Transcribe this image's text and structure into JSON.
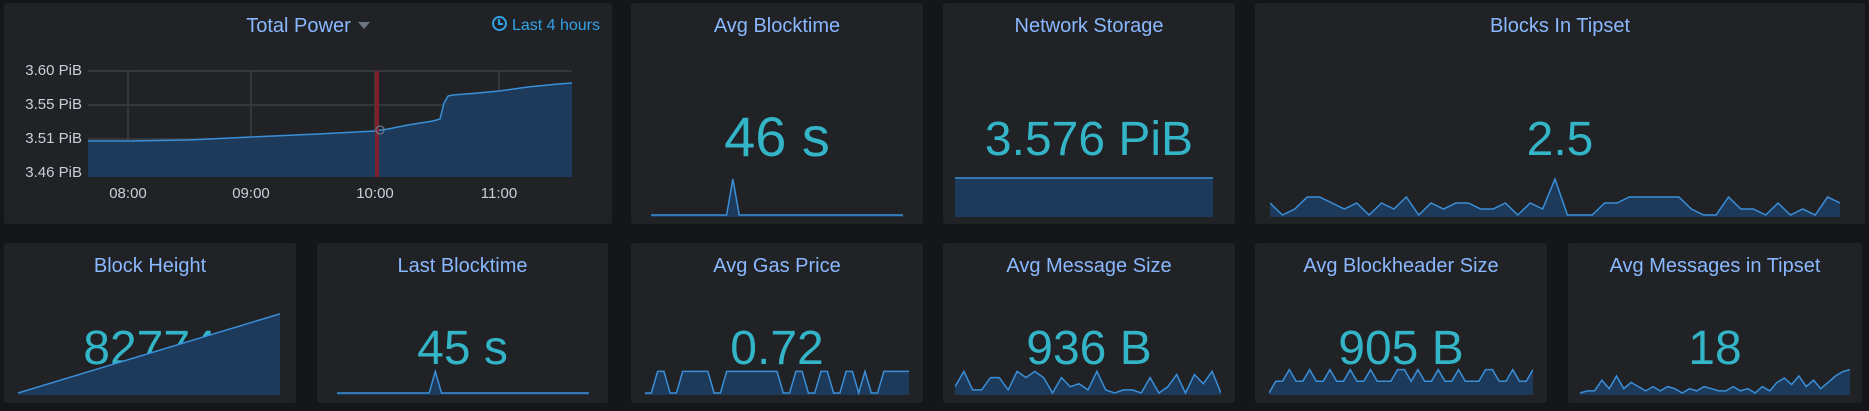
{
  "colors": {
    "accent": "#33b5c7",
    "title": "#8ab8ff",
    "line": "#3a8fd8",
    "fill": "#1e3a5a"
  },
  "total_power": {
    "title": "Total Power",
    "timepicker": "Last 4 hours",
    "icons": [
      "clock-icon",
      "caret-down-icon"
    ],
    "y_ticks": [
      "3.60 PiB",
      "3.55 PiB",
      "3.51 PiB",
      "3.46 PiB"
    ],
    "x_ticks": [
      "08:00",
      "09:00",
      "10:00",
      "11:00"
    ]
  },
  "avg_blocktime": {
    "title": "Avg Blocktime",
    "value": "46 s"
  },
  "network_storage": {
    "title": "Network Storage",
    "value": "3.576 PiB"
  },
  "blocks_in_tipset": {
    "title": "Blocks In Tipset",
    "value": "2.5"
  },
  "block_height": {
    "title": "Block Height",
    "value": "82774"
  },
  "last_blocktime": {
    "title": "Last Blocktime",
    "value": "45 s"
  },
  "avg_gas_price": {
    "title": "Avg Gas Price",
    "value": "0.72"
  },
  "avg_message_size": {
    "title": "Avg Message Size",
    "value": "936 B"
  },
  "avg_blockheader_size": {
    "title": "Avg Blockheader Size",
    "value": "905 B"
  },
  "avg_messages_in_tipset": {
    "title": "Avg Messages in Tipset",
    "value": "18"
  },
  "sparklines": {
    "avg_blocktime": [
      46,
      46,
      46,
      46,
      46,
      46,
      46,
      46,
      46,
      46,
      46,
      46,
      46,
      52,
      46,
      46,
      46,
      46,
      46,
      46,
      46,
      46,
      46,
      46,
      46,
      46,
      46,
      46,
      46,
      46,
      46,
      46,
      46,
      46,
      46,
      46,
      46,
      46,
      46,
      46,
      46
    ],
    "network_storage": [
      1,
      1,
      1,
      1,
      1,
      1,
      1,
      1,
      1,
      1,
      1,
      1,
      1,
      1,
      1,
      1,
      1,
      1,
      1,
      1,
      1,
      1,
      1,
      1
    ],
    "blocks_in_tipset": [
      3,
      1,
      2,
      4,
      4,
      3,
      2,
      3,
      1,
      3,
      2,
      4,
      1,
      3,
      2,
      3,
      3,
      2,
      2,
      3,
      1,
      3,
      2,
      7,
      1,
      1,
      1,
      3,
      3,
      4,
      4,
      4,
      4,
      4,
      2,
      1,
      1,
      4,
      2,
      2,
      1,
      3,
      1,
      2,
      1,
      4,
      3
    ],
    "block_height": [
      0,
      1
    ],
    "last_blocktime": [
      45,
      45,
      45,
      45,
      45,
      45,
      45,
      45,
      45,
      45,
      45,
      45,
      45,
      45,
      45,
      45,
      51,
      45,
      45,
      45,
      45,
      45,
      45,
      45,
      45,
      45,
      45,
      45,
      45,
      45,
      45,
      45,
      45,
      45,
      45,
      45,
      45,
      45,
      45,
      45,
      45,
      45
    ],
    "avg_gas_price": [
      0,
      0,
      5,
      5,
      0,
      0,
      5,
      5,
      5,
      5,
      5,
      0,
      0,
      5,
      5,
      5,
      5,
      5,
      5,
      5,
      5,
      5,
      0,
      0,
      5,
      5,
      0,
      0,
      5,
      5,
      0,
      0,
      5,
      5,
      0,
      5,
      0,
      0,
      5,
      5,
      5,
      5,
      5
    ],
    "avg_message_size": [
      3,
      8,
      2,
      2,
      6,
      6,
      2,
      8,
      6,
      8,
      6,
      1,
      6,
      3,
      4,
      2,
      8,
      2,
      1,
      2,
      2,
      1,
      6,
      1,
      3,
      7,
      1,
      7,
      4,
      8,
      1
    ],
    "avg_blockheader_size": [
      4,
      5,
      5,
      6,
      5,
      5,
      6,
      5,
      5,
      6,
      5,
      5,
      6,
      5,
      5,
      6,
      5,
      5,
      5,
      6,
      6,
      5,
      6,
      5,
      5,
      6,
      5,
      5,
      6,
      5,
      5,
      5,
      6,
      6,
      5,
      5,
      6,
      5,
      5,
      6
    ],
    "avg_messages_in_tipset": [
      1,
      2,
      2,
      7,
      3,
      9,
      3,
      6,
      4,
      2,
      4,
      2,
      4,
      3,
      1,
      3,
      2,
      4,
      3,
      2,
      2,
      4,
      2,
      3,
      1,
      4,
      2,
      6,
      8,
      5,
      9,
      4,
      7,
      3,
      6,
      9,
      11,
      12
    ]
  }
}
